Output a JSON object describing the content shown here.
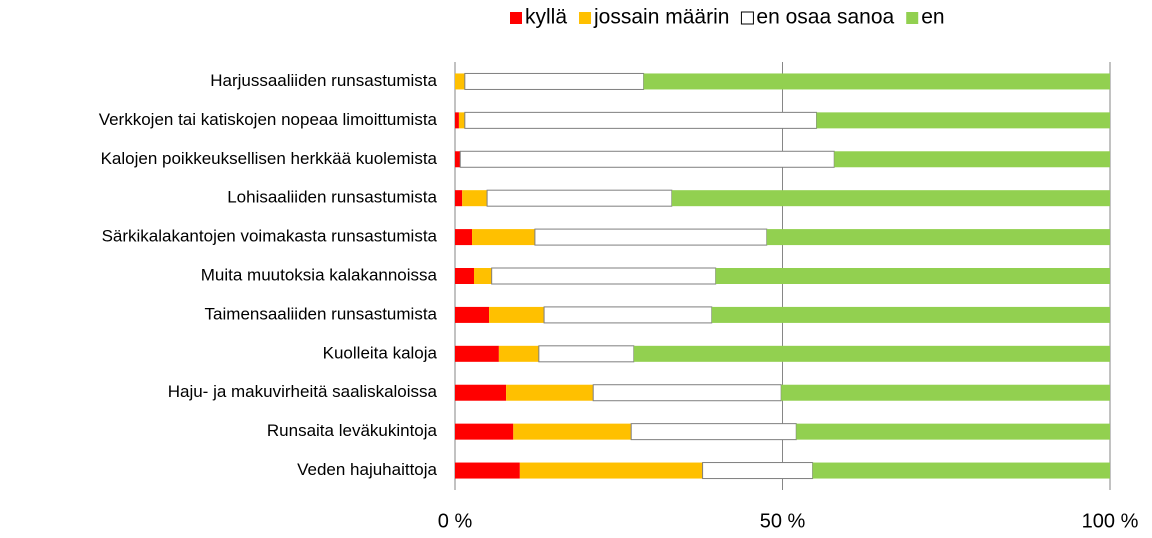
{
  "chart_data": {
    "type": "stacked_barh",
    "categories": [
      "Harjussaaliiden runsastumista",
      "Verkkojen tai katiskojen nopeaa limoittumista",
      "Kalojen poikkeuksellisen herkkää kuolemista",
      "Lohisaaliiden runsastumista",
      "Särkikalakantojen voimakasta runsastumista",
      "Muita muutoksia kalakannoissa",
      "Taimensaaliiden runsastumista",
      "Kuolleita kaloja",
      "Haju- ja makuvirheitä saaliskaloissa",
      "Runsaita leväkukintoja",
      "Veden hajuhaittoja"
    ],
    "series": [
      {
        "name": "kyllä",
        "color": "#ff0000",
        "values": [
          0,
          0.6,
          0.8,
          1.1,
          2.6,
          2.9,
          5.2,
          6.7,
          7.8,
          8.9,
          9.9
        ]
      },
      {
        "name": "jossain määrin",
        "color": "#ffc000",
        "values": [
          1.5,
          0.9,
          0,
          3.8,
          9.6,
          2.7,
          8.4,
          6.1,
          13.3,
          18.0,
          27.9
        ]
      },
      {
        "name": "en osaa sanoa",
        "color": "#ffffff",
        "values": [
          27.3,
          53.7,
          57.1,
          28.2,
          35.4,
          34.2,
          25.6,
          14.5,
          28.7,
          25.2,
          16.8
        ]
      },
      {
        "name": "en",
        "color": "#92d050",
        "values": [
          71.2,
          44.8,
          42.1,
          66.9,
          52.4,
          60.2,
          60.8,
          72.7,
          50.2,
          47.9,
          45.4
        ]
      }
    ],
    "xlim": [
      0,
      100
    ],
    "xticks": [
      {
        "value": 0,
        "label": "0 %"
      },
      {
        "value": 50,
        "label": "50 %"
      },
      {
        "value": 100,
        "label": "100 %"
      }
    ],
    "grid": true,
    "legend": "top"
  }
}
